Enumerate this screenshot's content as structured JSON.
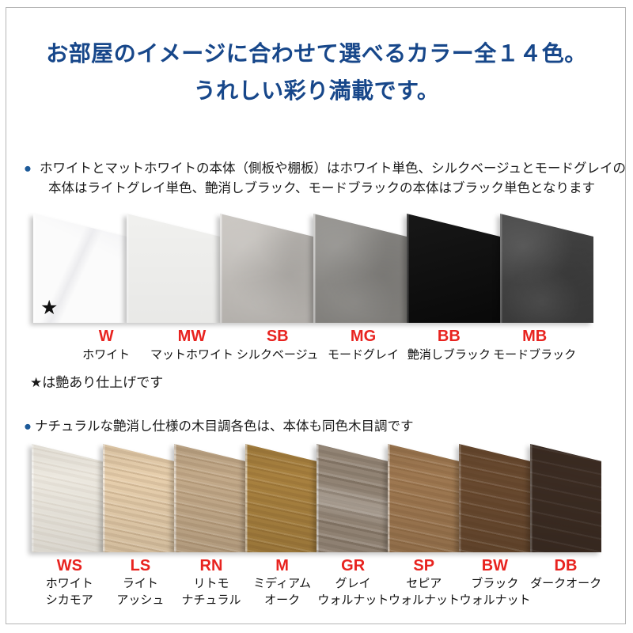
{
  "palette": {
    "title_blue": "#17478a",
    "bullet_blue": "#1d5a99",
    "code_red": "#e8231f",
    "border_gray": "#b5b5b5"
  },
  "title": {
    "line1": "お部屋のイメージに合わせて選べるカラー全１４色。",
    "line2": "うれしい彩り満載です。"
  },
  "section1": {
    "bullet": "●",
    "note_line1": "ホワイトとマットホワイトの本体（側板や棚板）はホワイト単色、シルクベージュとモードグレイの",
    "note_line2": "本体はライトグレイ単色、艶消しブラック、モードブラックの本体はブラック単色となります",
    "footnote": "★は艶あり仕上げです",
    "star_mark": "★",
    "swatches": [
      {
        "code": "W",
        "name": "ホワイト",
        "color": "#fbfbfb"
      },
      {
        "code": "MW",
        "name": "マットホワイト",
        "color": "#f5f5f3"
      },
      {
        "code": "SB",
        "name": "シルクベージュ",
        "color": "#c7c3be"
      },
      {
        "code": "MG",
        "name": "モードグレイ",
        "color": "#8e8c88"
      },
      {
        "code": "BB",
        "name": "艶消しブラック",
        "color": "#0b0b0b"
      },
      {
        "code": "MB",
        "name": "モードブラック",
        "color": "#3e3e3e"
      }
    ]
  },
  "section2": {
    "bullet": "●",
    "note": "ナチュラルな艶消し仕様の木目調各色は、本体も同色木目調です",
    "swatches": [
      {
        "code": "WS",
        "name1": "ホワイト",
        "name2": "シカモア",
        "color": "#ece8df"
      },
      {
        "code": "LS",
        "name1": "ライト",
        "name2": "アッシュ",
        "color": "#e7cfad"
      },
      {
        "code": "RN",
        "name1": "リトモ",
        "name2": "ナチュラル",
        "color": "#c3aa8a"
      },
      {
        "code": "M",
        "name1": "ミディアム",
        "name2": "オーク",
        "color": "#a8813f"
      },
      {
        "code": "GR",
        "name1": "グレイ",
        "name2": "ウォルナット",
        "color": "#9a8b7b"
      },
      {
        "code": "SP",
        "name1": "セピア",
        "name2": "ウォルナット",
        "color": "#9e7851"
      },
      {
        "code": "BW",
        "name1": "ブラック",
        "name2": "ウォルナット",
        "color": "#68492f"
      },
      {
        "code": "DB",
        "name1": "ダークオーク",
        "name2": "",
        "color": "#3a2b22"
      }
    ]
  }
}
